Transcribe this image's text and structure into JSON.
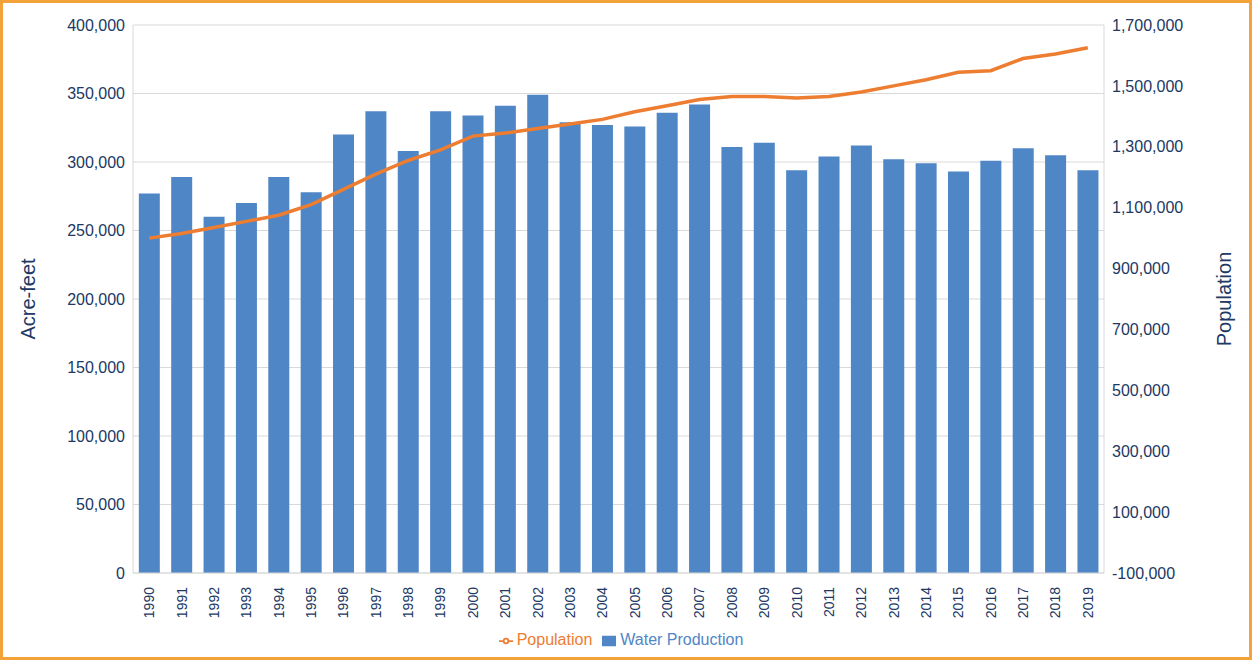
{
  "chart_data": {
    "type": "bar",
    "categories": [
      "1990",
      "1991",
      "1992",
      "1993",
      "1994",
      "1995",
      "1996",
      "1997",
      "1998",
      "1999",
      "2000",
      "2001",
      "2002",
      "2003",
      "2004",
      "2005",
      "2006",
      "2007",
      "2008",
      "2009",
      "2010",
      "2011",
      "2012",
      "2013",
      "2014",
      "2015",
      "2016",
      "2017",
      "2018",
      "2019"
    ],
    "series": [
      {
        "name": "Water Production",
        "type": "bar",
        "color": "#4f86c6",
        "values": [
          277000,
          289000,
          260000,
          270000,
          289000,
          278000,
          320000,
          337000,
          308000,
          337000,
          334000,
          341000,
          349000,
          329000,
          327000,
          326000,
          336000,
          342000,
          311000,
          314000,
          294000,
          304000,
          312000,
          302000,
          299000,
          293000,
          301000,
          310000,
          305000,
          294000
        ]
      },
      {
        "name": "Population",
        "type": "line",
        "axis": "y2",
        "color": "#ed7d31",
        "values": [
          1000000,
          1015000,
          1035000,
          1055000,
          1075000,
          1110000,
          1160000,
          1210000,
          1255000,
          1290000,
          1335000,
          1345000,
          1360000,
          1375000,
          1390000,
          1415000,
          1435000,
          1455000,
          1465000,
          1465000,
          1460000,
          1465000,
          1480000,
          1500000,
          1520000,
          1545000,
          1550000,
          1590000,
          1605000,
          1625000
        ]
      }
    ],
    "y_label": "Acre-feet",
    "y2_label": "Population",
    "ylim": [
      0,
      400000
    ],
    "yticks": [
      0,
      {
        "value": 50000,
        "label": "50,000"
      },
      {
        "value": 100000,
        "label": "100,000"
      },
      {
        "value": 150000,
        "label": "150,000"
      },
      {
        "value": 200000,
        "label": "200,000"
      },
      {
        "value": 250000,
        "label": "250,000"
      },
      {
        "value": 300000,
        "label": "300,000"
      },
      {
        "value": 350000,
        "label": "350,000"
      },
      {
        "value": 400000,
        "label": "400,000"
      }
    ],
    "y2lim": [
      -100000,
      1700000
    ],
    "y2ticks": [
      {
        "value": -100000,
        "label": "-100,000"
      },
      {
        "value": 100000,
        "label": "100,000"
      },
      {
        "value": 300000,
        "label": "300,000"
      },
      {
        "value": 500000,
        "label": "500,000"
      },
      {
        "value": 700000,
        "label": "700,000"
      },
      {
        "value": 900000,
        "label": "900,000"
      },
      {
        "value": 1100000,
        "label": "1,100,000"
      },
      {
        "value": 1300000,
        "label": "1,300,000"
      },
      {
        "value": 1500000,
        "label": "1,500,000"
      },
      {
        "value": 1700000,
        "label": "1,700,000"
      }
    ],
    "grid": true,
    "legend": "bottom"
  }
}
